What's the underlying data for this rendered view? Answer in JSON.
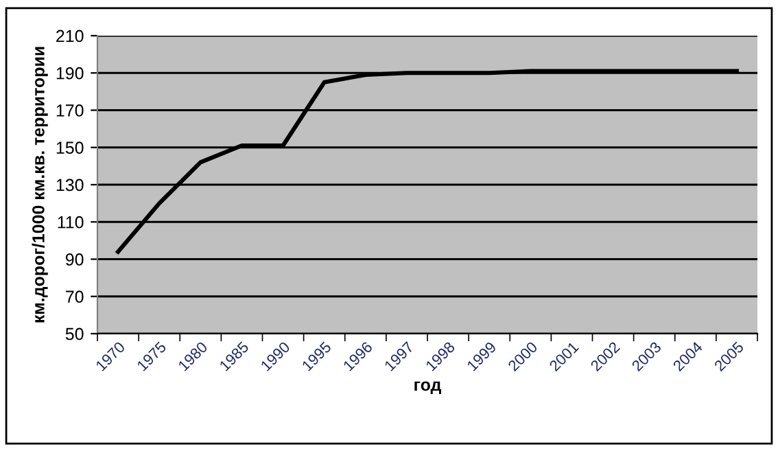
{
  "chart_data": {
    "type": "line",
    "xlabel": "год",
    "ylabel": "км.дорог/1000 км.кв. территории",
    "categories": [
      "1970",
      "1975",
      "1980",
      "1985",
      "1990",
      "1995",
      "1996",
      "1997",
      "1998",
      "1999",
      "2000",
      "2001",
      "2002",
      "2003",
      "2004",
      "2005"
    ],
    "series": [
      {
        "color": "#000000",
        "values": [
          94,
          120,
          142,
          151,
          151,
          185,
          189,
          190,
          190,
          190,
          191,
          191,
          191,
          191,
          191,
          191
        ]
      }
    ],
    "ylim": [
      50,
      210
    ],
    "yticks": [
      50,
      70,
      90,
      110,
      130,
      150,
      170,
      190,
      210
    ],
    "grid": "y",
    "legend": false,
    "marker": "none",
    "line_style": "solid"
  }
}
